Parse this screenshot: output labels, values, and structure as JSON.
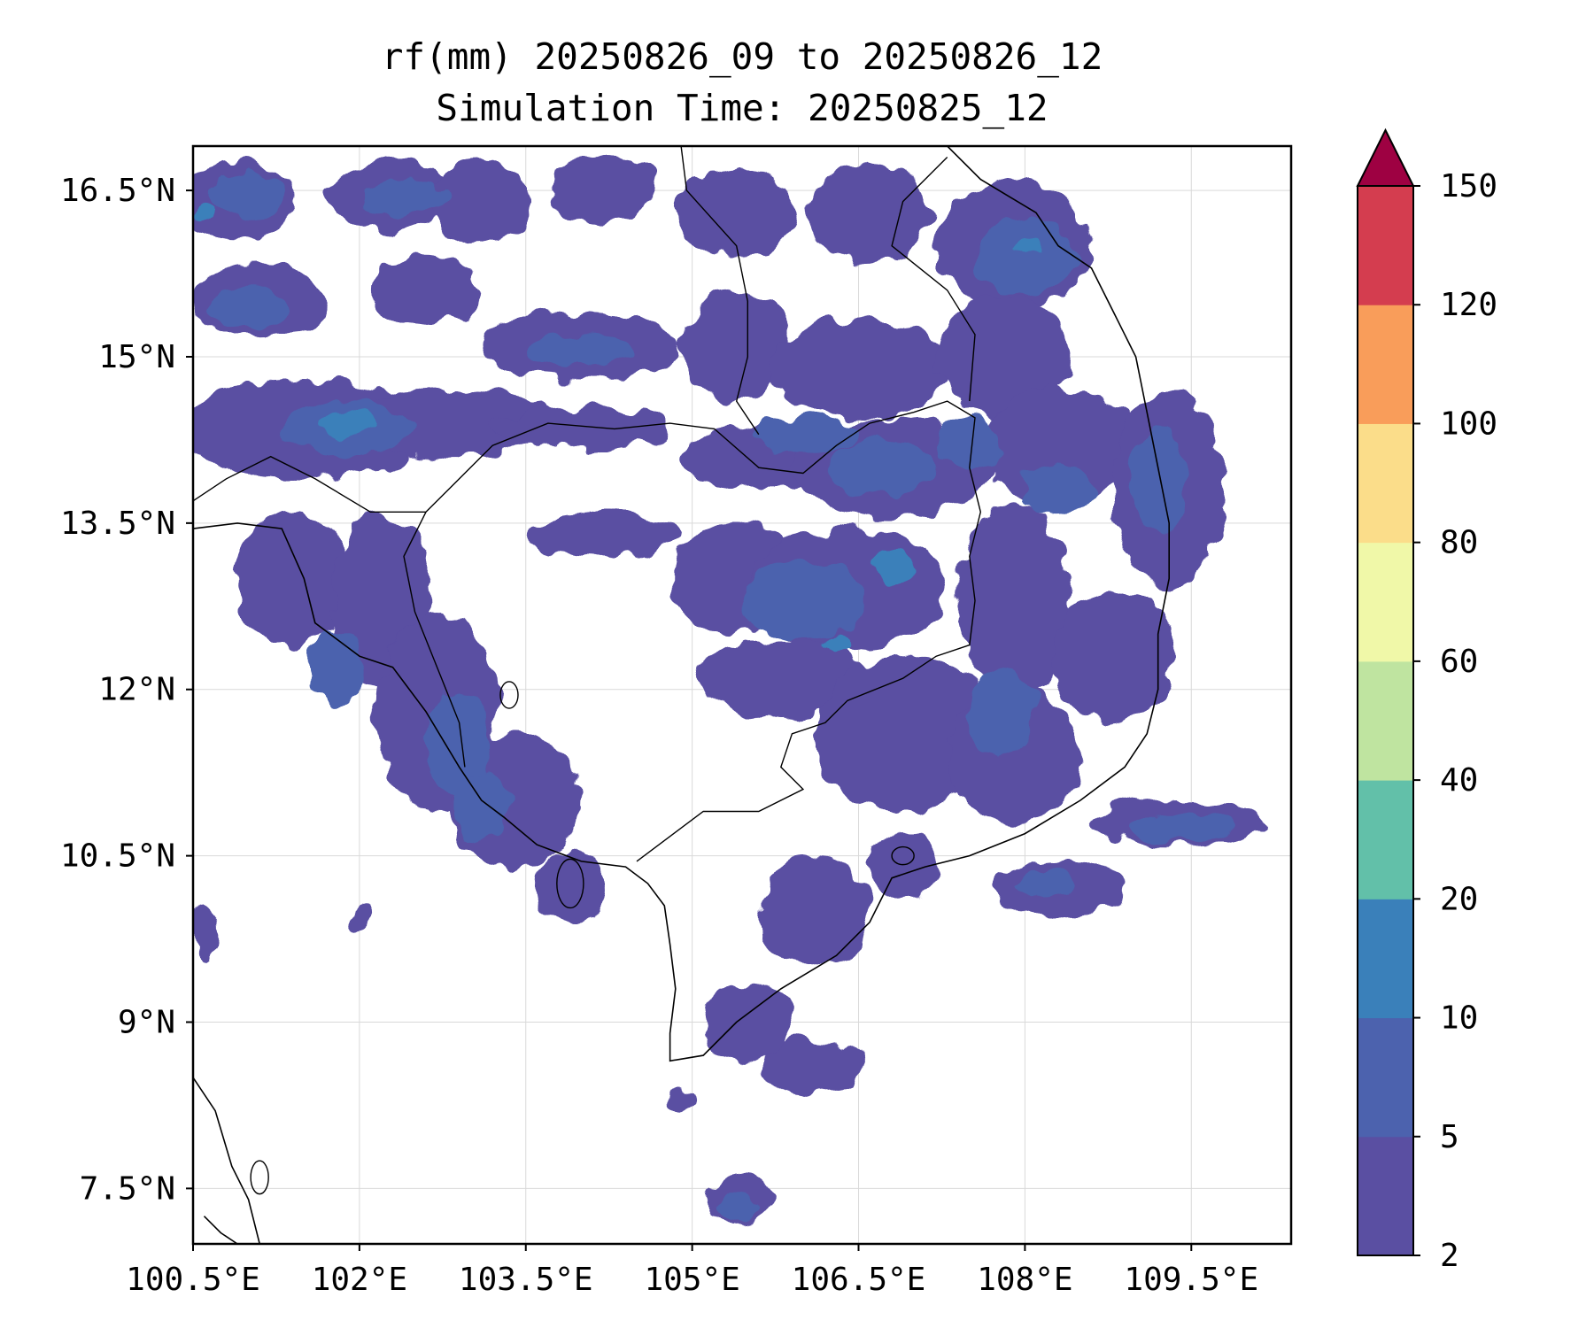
{
  "title_line1": "rf(mm) 20250826_09 to 20250826_12",
  "title_line2": "Simulation Time: 20250825_12",
  "map": {
    "lon_range": [
      100.5,
      110.4
    ],
    "lat_range": [
      7.0,
      16.9
    ],
    "lon_ticks": [
      100.5,
      102,
      103.5,
      105,
      106.5,
      108,
      109.5
    ],
    "lon_tick_labels": [
      "100.5°E",
      "102°E",
      "103.5°E",
      "105°E",
      "106.5°E",
      "108°E",
      "109.5°E"
    ],
    "lat_ticks": [
      16.5,
      15,
      13.5,
      12,
      10.5,
      9,
      7.5
    ],
    "lat_tick_labels": [
      "16.5°N",
      "15°N",
      "13.5°N",
      "12°N",
      "10.5°N",
      "9°N",
      "7.5°N"
    ],
    "gridlines": true
  },
  "colorbar": {
    "levels": [
      2,
      5,
      10,
      20,
      40,
      60,
      80,
      100,
      120,
      150
    ],
    "tick_labels": [
      "2",
      "5",
      "10",
      "20",
      "40",
      "60",
      "80",
      "100",
      "120",
      "150"
    ],
    "colors": [
      "#5a4fa2",
      "#4c62ae",
      "#3a80ba",
      "#62c0a9",
      "#bfe4a0",
      "#f0f8a8",
      "#fbdd8a",
      "#f99d5a",
      "#d43d4f"
    ],
    "extend_color": "#9e0142",
    "extend": "max"
  },
  "rain_fields": [
    {
      "level": 2,
      "blobs": [
        [
          100.9,
          16.4,
          0.55,
          0.35
        ],
        [
          102.3,
          16.45,
          0.6,
          0.3
        ],
        [
          103.1,
          16.4,
          0.45,
          0.4
        ],
        [
          104.2,
          16.5,
          0.5,
          0.3
        ],
        [
          105.4,
          16.3,
          0.55,
          0.4
        ],
        [
          106.6,
          16.3,
          0.55,
          0.45
        ],
        [
          107.9,
          16.0,
          0.7,
          0.6
        ],
        [
          101.1,
          15.5,
          0.6,
          0.35
        ],
        [
          102.6,
          15.6,
          0.5,
          0.3
        ],
        [
          104.0,
          15.1,
          0.9,
          0.3
        ],
        [
          105.4,
          15.1,
          0.5,
          0.5
        ],
        [
          106.5,
          14.9,
          0.8,
          0.45
        ],
        [
          107.8,
          15.0,
          0.6,
          0.55
        ],
        [
          101.5,
          14.35,
          1.1,
          0.45
        ],
        [
          102.8,
          14.4,
          1.0,
          0.3
        ],
        [
          104.0,
          14.35,
          0.8,
          0.2
        ],
        [
          105.6,
          14.1,
          0.7,
          0.3
        ],
        [
          106.8,
          14.0,
          0.9,
          0.45
        ],
        [
          108.3,
          14.2,
          0.7,
          0.5
        ],
        [
          109.3,
          13.8,
          0.5,
          0.9
        ],
        [
          101.4,
          13.0,
          0.5,
          0.6
        ],
        [
          102.2,
          12.8,
          0.45,
          0.8
        ],
        [
          104.2,
          13.4,
          0.7,
          0.2
        ],
        [
          105.4,
          13.0,
          0.6,
          0.5
        ],
        [
          106.4,
          12.9,
          0.9,
          0.55
        ],
        [
          107.9,
          12.8,
          0.5,
          0.9
        ],
        [
          108.8,
          12.3,
          0.55,
          0.6
        ],
        [
          102.7,
          11.8,
          0.55,
          0.9
        ],
        [
          103.4,
          11.0,
          0.6,
          0.6
        ],
        [
          103.9,
          10.2,
          0.3,
          0.35
        ],
        [
          105.8,
          12.1,
          0.8,
          0.35
        ],
        [
          106.9,
          11.6,
          0.8,
          0.7
        ],
        [
          107.9,
          11.4,
          0.6,
          0.6
        ],
        [
          106.1,
          10.0,
          0.5,
          0.5
        ],
        [
          106.9,
          10.4,
          0.3,
          0.3
        ],
        [
          108.3,
          10.2,
          0.6,
          0.25
        ],
        [
          109.4,
          10.8,
          0.8,
          0.2
        ],
        [
          105.5,
          9.0,
          0.4,
          0.35
        ],
        [
          106.1,
          8.6,
          0.45,
          0.25
        ],
        [
          105.4,
          7.4,
          0.3,
          0.2
        ],
        [
          104.9,
          8.3,
          0.1,
          0.1
        ],
        [
          100.6,
          9.8,
          0.1,
          0.25
        ],
        [
          102.0,
          9.9,
          0.1,
          0.1
        ]
      ]
    },
    {
      "level": 5,
      "blobs": [
        [
          101.0,
          16.45,
          0.35,
          0.2
        ],
        [
          102.4,
          16.45,
          0.4,
          0.15
        ],
        [
          101.0,
          15.45,
          0.35,
          0.2
        ],
        [
          101.9,
          14.35,
          0.6,
          0.25
        ],
        [
          104.0,
          15.05,
          0.5,
          0.15
        ],
        [
          106.0,
          14.3,
          0.5,
          0.15
        ],
        [
          106.7,
          14.0,
          0.5,
          0.25
        ],
        [
          107.5,
          14.2,
          0.3,
          0.25
        ],
        [
          108.0,
          15.9,
          0.45,
          0.35
        ],
        [
          108.3,
          13.8,
          0.3,
          0.25
        ],
        [
          109.2,
          13.9,
          0.25,
          0.5
        ],
        [
          101.8,
          12.2,
          0.25,
          0.35
        ],
        [
          102.9,
          11.5,
          0.3,
          0.5
        ],
        [
          103.1,
          10.95,
          0.25,
          0.3
        ],
        [
          106.0,
          12.8,
          0.55,
          0.35
        ],
        [
          107.8,
          11.8,
          0.3,
          0.4
        ],
        [
          109.4,
          10.75,
          0.5,
          0.12
        ],
        [
          108.2,
          10.25,
          0.3,
          0.12
        ],
        [
          105.4,
          7.35,
          0.2,
          0.12
        ]
      ]
    },
    {
      "level": 10,
      "blobs": [
        [
          101.9,
          14.4,
          0.25,
          0.12
        ],
        [
          100.6,
          16.3,
          0.1,
          0.08
        ],
        [
          106.8,
          13.1,
          0.2,
          0.15
        ],
        [
          108.0,
          16.0,
          0.12,
          0.1
        ],
        [
          106.3,
          12.4,
          0.15,
          0.08
        ]
      ]
    }
  ],
  "coastline": [
    [
      [
        100.5,
        13.45
      ],
      [
        100.9,
        13.5
      ],
      [
        101.3,
        13.45
      ],
      [
        101.5,
        13.0
      ],
      [
        101.6,
        12.6
      ],
      [
        102.0,
        12.3
      ],
      [
        102.3,
        12.2
      ],
      [
        102.6,
        11.8
      ],
      [
        102.9,
        11.3
      ],
      [
        103.1,
        11.0
      ],
      [
        103.3,
        10.85
      ],
      [
        103.6,
        10.6
      ],
      [
        104.0,
        10.45
      ],
      [
        104.4,
        10.4
      ],
      [
        104.6,
        10.25
      ],
      [
        104.75,
        10.05
      ],
      [
        104.8,
        9.7
      ],
      [
        104.85,
        9.3
      ],
      [
        104.8,
        8.9
      ],
      [
        104.8,
        8.65
      ],
      [
        105.1,
        8.7
      ],
      [
        105.4,
        9.0
      ],
      [
        105.8,
        9.3
      ],
      [
        106.3,
        9.6
      ],
      [
        106.6,
        9.9
      ],
      [
        106.8,
        10.3
      ],
      [
        107.1,
        10.4
      ],
      [
        107.5,
        10.5
      ],
      [
        108.0,
        10.7
      ],
      [
        108.5,
        11.0
      ],
      [
        108.9,
        11.3
      ],
      [
        109.1,
        11.6
      ],
      [
        109.2,
        12.0
      ],
      [
        109.2,
        12.5
      ],
      [
        109.3,
        13.0
      ],
      [
        109.3,
        13.5
      ],
      [
        109.2,
        14.0
      ],
      [
        109.1,
        14.5
      ],
      [
        109.0,
        15.0
      ],
      [
        108.8,
        15.4
      ],
      [
        108.6,
        15.8
      ],
      [
        108.3,
        16.0
      ],
      [
        108.1,
        16.3
      ],
      [
        107.6,
        16.6
      ],
      [
        107.3,
        16.9
      ]
    ],
    [
      [
        100.5,
        8.5
      ],
      [
        100.7,
        8.2
      ],
      [
        100.85,
        7.7
      ],
      [
        101.0,
        7.4
      ],
      [
        101.1,
        7.0
      ]
    ],
    [
      [
        100.6,
        7.25
      ],
      [
        100.75,
        7.1
      ],
      [
        100.9,
        7.0
      ]
    ]
  ],
  "borders": [
    [
      [
        102.6,
        13.6
      ],
      [
        102.8,
        13.8
      ],
      [
        103.2,
        14.2
      ],
      [
        103.7,
        14.4
      ],
      [
        104.3,
        14.35
      ],
      [
        104.8,
        14.4
      ],
      [
        105.2,
        14.35
      ],
      [
        105.6,
        14.0
      ],
      [
        106.0,
        13.95
      ],
      [
        106.3,
        14.2
      ],
      [
        106.6,
        14.4
      ],
      [
        107.0,
        14.5
      ],
      [
        107.3,
        14.6
      ],
      [
        107.55,
        14.45
      ],
      [
        107.5,
        14.0
      ],
      [
        107.6,
        13.6
      ],
      [
        107.5,
        13.2
      ],
      [
        107.55,
        12.8
      ],
      [
        107.5,
        12.4
      ],
      [
        107.2,
        12.3
      ],
      [
        106.9,
        12.1
      ],
      [
        106.4,
        11.9
      ],
      [
        106.2,
        11.7
      ],
      [
        105.9,
        11.6
      ],
      [
        105.8,
        11.3
      ],
      [
        106.0,
        11.1
      ],
      [
        105.6,
        10.9
      ],
      [
        105.1,
        10.9
      ],
      [
        104.5,
        10.45
      ]
    ],
    [
      [
        102.6,
        13.6
      ],
      [
        102.4,
        13.2
      ],
      [
        102.5,
        12.7
      ],
      [
        102.7,
        12.2
      ],
      [
        102.9,
        11.7
      ],
      [
        102.95,
        11.3
      ]
    ],
    [
      [
        104.9,
        16.9
      ],
      [
        104.95,
        16.5
      ],
      [
        105.4,
        16.0
      ],
      [
        105.5,
        15.5
      ],
      [
        105.5,
        15.0
      ],
      [
        105.4,
        14.6
      ],
      [
        105.6,
        14.3
      ]
    ],
    [
      [
        107.3,
        16.8
      ],
      [
        106.9,
        16.4
      ],
      [
        106.8,
        16.0
      ],
      [
        107.3,
        15.6
      ],
      [
        107.55,
        15.2
      ],
      [
        107.5,
        14.6
      ]
    ],
    [
      [
        100.5,
        13.7
      ],
      [
        100.8,
        13.9
      ],
      [
        101.2,
        14.1
      ],
      [
        101.6,
        13.9
      ],
      [
        102.1,
        13.6
      ],
      [
        102.6,
        13.6
      ]
    ]
  ],
  "islands": [
    [
      103.35,
      11.95,
      0.08,
      0.12
    ],
    [
      103.9,
      10.25,
      0.12,
      0.22
    ],
    [
      106.9,
      10.5,
      0.1,
      0.08
    ],
    [
      101.1,
      7.6,
      0.08,
      0.15
    ]
  ]
}
